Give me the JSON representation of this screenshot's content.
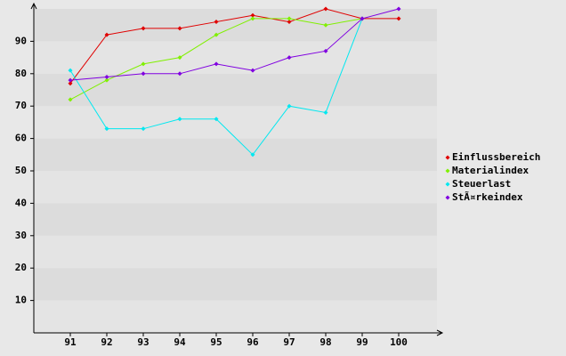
{
  "chart_data": {
    "type": "line",
    "x": [
      91,
      92,
      93,
      94,
      95,
      96,
      97,
      98,
      99,
      100
    ],
    "xlim": [
      90,
      101
    ],
    "xticks": [
      91,
      92,
      93,
      94,
      95,
      96,
      97,
      98,
      99,
      100
    ],
    "ylim": [
      0,
      100
    ],
    "yticks": [
      10,
      20,
      30,
      40,
      50,
      60,
      70,
      80,
      90
    ],
    "grid": true,
    "legend": "right",
    "series": [
      {
        "name": "Einflussbereich",
        "color": "#e00000",
        "values": [
          77,
          92,
          94,
          94,
          96,
          98,
          96,
          100,
          97,
          97
        ]
      },
      {
        "name": "Materialindex",
        "color": "#80f000",
        "values": [
          72,
          78,
          83,
          85,
          92,
          97,
          97,
          95,
          97,
          null
        ]
      },
      {
        "name": "Steuerlast",
        "color": "#00e8f0",
        "values": [
          81,
          63,
          63,
          66,
          66,
          55,
          70,
          68,
          97,
          null
        ]
      },
      {
        "name": "StÃ¤rkeindex",
        "color": "#8000e0",
        "values": [
          78,
          79,
          80,
          80,
          83,
          81,
          85,
          87,
          97,
          100
        ]
      }
    ]
  }
}
